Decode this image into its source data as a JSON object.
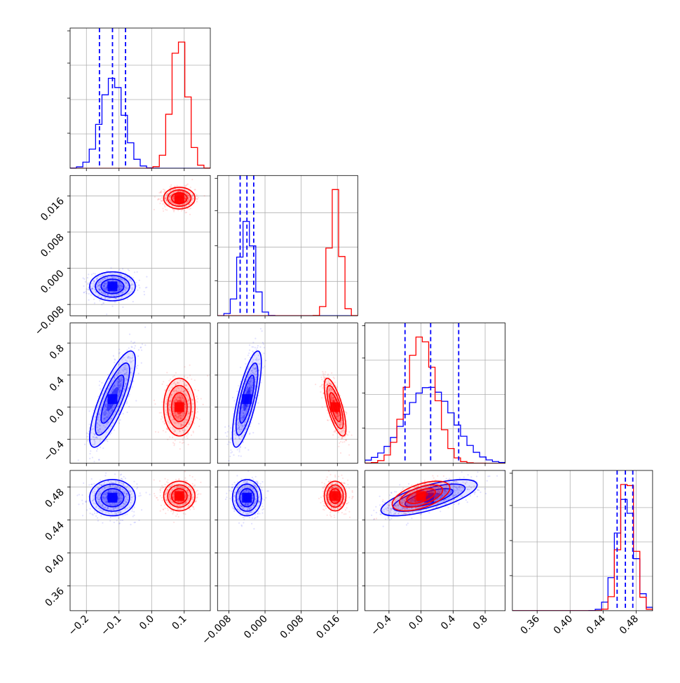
{
  "colors": {
    "sample_a": "#0000ff",
    "sample_b": "#ff0000",
    "grid": "#b0b0b0",
    "frame": "#000000"
  },
  "chart_data": {
    "type": "corner",
    "grid": true,
    "legend": "none",
    "parameters": [
      {
        "range": [
          -0.25,
          0.18
        ],
        "ticks": [
          -0.2,
          -0.1,
          0.0,
          0.1
        ],
        "tick_labels": [
          "−0.2",
          "−0.1",
          "0.0",
          "0.1"
        ]
      },
      {
        "range": [
          -0.0105,
          0.0205
        ],
        "ticks": [
          -0.008,
          0.0,
          0.008,
          0.016
        ],
        "tick_labels": [
          "−0.008",
          "0.000",
          "0.008",
          "0.016"
        ]
      },
      {
        "range": [
          -0.7,
          1.05
        ],
        "ticks": [
          -0.4,
          0.0,
          0.4,
          0.8
        ],
        "tick_labels": [
          "−0.4",
          "0.0",
          "0.4",
          "0.8"
        ]
      },
      {
        "range": [
          0.33,
          0.5
        ],
        "ticks": [
          0.36,
          0.4,
          0.44,
          0.48
        ],
        "tick_labels": [
          "0.36",
          "0.40",
          "0.44",
          "0.48"
        ]
      }
    ],
    "series": [
      {
        "color": "#0000ff",
        "mean": [
          -0.12,
          -0.004,
          0.1,
          0.467
        ],
        "sd": [
          0.035,
          0.0016,
          0.3,
          0.011
        ],
        "corr": [
          [
            0,
            2,
            0.8
          ],
          [
            1,
            2,
            0.75
          ],
          [
            2,
            3,
            0.7
          ]
        ],
        "quantiles": [
          [
            -0.16,
            -0.12,
            -0.08
          ],
          [
            -0.0055,
            -0.004,
            -0.0025
          ],
          [
            -0.2,
            0.12,
            0.47
          ],
          [
            0.457,
            0.467,
            0.476
          ]
        ]
      },
      {
        "color": "#ff0000",
        "mean": [
          0.085,
          0.0155,
          0.0,
          0.469
        ],
        "sd": [
          0.024,
          0.0012,
          0.18,
          0.009
        ],
        "corr": [
          [
            1,
            2,
            -0.72
          ],
          [
            2,
            3,
            0.55
          ]
        ],
        "quantiles": []
      }
    ]
  }
}
